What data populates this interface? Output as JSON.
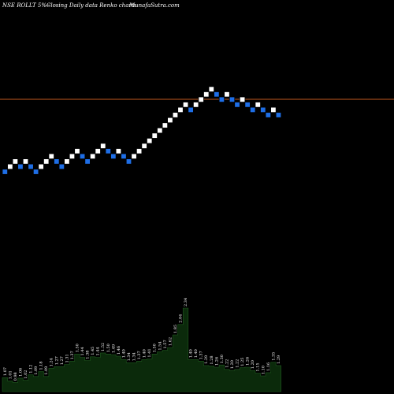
{
  "header": {
    "symbol": "NSE ROLLT 5%~",
    "description": "Closing Daily data  Renko  charts",
    "site": "MunafaSutra.com"
  },
  "colors": {
    "background": "#000000",
    "up_brick": "#ffffff",
    "down_brick": "#1e6ee6",
    "reference_line": "#c0581e",
    "volume_fill": "#0b2a0b",
    "volume_edge": "#1f5a1f",
    "text": "#ffffff"
  },
  "chart_data": {
    "type": "renko",
    "brick_direction": [
      "down",
      "up",
      "up",
      "down",
      "up",
      "down",
      "down",
      "up",
      "up",
      "up",
      "down",
      "down",
      "up",
      "up",
      "up",
      "down",
      "down",
      "up",
      "up",
      "up",
      "down",
      "down",
      "up",
      "down",
      "down",
      "up",
      "up",
      "up",
      "up",
      "up",
      "up",
      "up",
      "up",
      "up",
      "up",
      "up",
      "down",
      "up",
      "up",
      "up",
      "up",
      "down",
      "down",
      "up",
      "down",
      "down",
      "up",
      "down",
      "down",
      "up",
      "down",
      "down",
      "up",
      "down"
    ],
    "reference_line": true,
    "volume": {
      "values": [
        1.07,
        1.01,
        0.98,
        1.06,
        1.02,
        1.12,
        1.09,
        1.18,
        1.09,
        1.24,
        1.27,
        1.27,
        1.31,
        1.37,
        1.5,
        1.44,
        1.38,
        1.45,
        1.44,
        1.52,
        1.5,
        1.49,
        1.46,
        1.4,
        1.34,
        1.34,
        1.37,
        1.4,
        1.41,
        1.5,
        1.54,
        1.57,
        1.62,
        1.85,
        2.04,
        2.34,
        1.4,
        1.4,
        1.37,
        1.29,
        1.28,
        1.26,
        1.3,
        1.22,
        1.2,
        1.22,
        1.25,
        1.26,
        1.2,
        1.15,
        1.1,
        1.16,
        1.35,
        1.29
      ],
      "labels": [
        "1.07",
        "1.01",
        "0.98",
        "1.06",
        "1.02",
        "1.12",
        "1.09",
        "1.18",
        "1.09",
        "1.24",
        "1.27",
        "1.27",
        "1.31",
        "1.37",
        "1.50",
        "1.44",
        "1.38",
        "1.45",
        "1.44",
        "1.52",
        "1.50",
        "1.49",
        "1.46",
        "1.40",
        "1.34",
        "1.34",
        "1.37",
        "1.40",
        "1.41",
        "1.50",
        "1.54",
        "1.57",
        "1.62",
        "1.85",
        "2.04",
        "2.34",
        "1.40",
        "1.40",
        "1.37",
        "1.29",
        "1.28",
        "1.26",
        "1.30",
        "1.22",
        "1.20",
        "1.22",
        "1.25",
        "1.26",
        "1.20",
        "1.15",
        "1.10",
        "1.16",
        "1.35",
        "1.29"
      ]
    }
  }
}
